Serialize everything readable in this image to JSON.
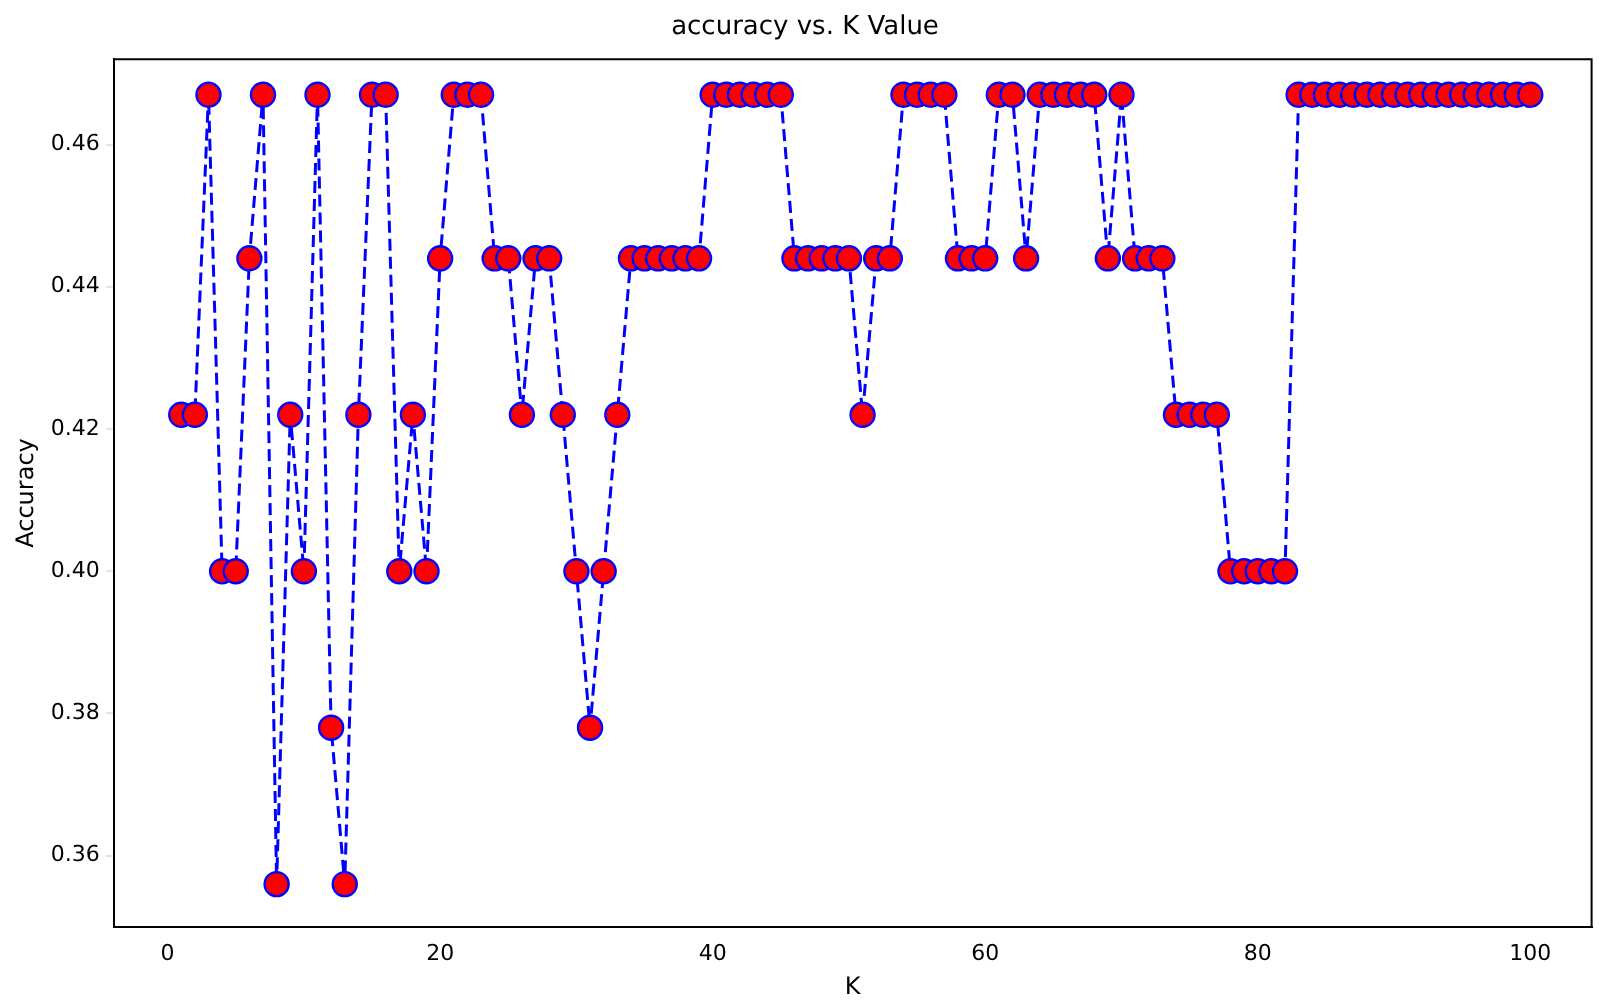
{
  "chart_data": {
    "type": "line",
    "title": "accuracy vs. K Value",
    "xlabel": "K",
    "ylabel": "Accuracy",
    "xlim": [
      -3.95,
      104.5
    ],
    "xticks": [
      0,
      20,
      40,
      60,
      80,
      100
    ],
    "ylim": [
      0.35,
      0.472
    ],
    "yticks": [
      {
        "value": 0.36,
        "label": "0.36"
      },
      {
        "value": 0.38,
        "label": "0.38"
      },
      {
        "value": 0.4,
        "label": "0.40"
      },
      {
        "value": 0.42,
        "label": "0.42"
      },
      {
        "value": 0.44,
        "label": "0.44"
      },
      {
        "value": 0.46,
        "label": "0.46"
      }
    ],
    "grid": false,
    "legend": false,
    "marker": "circle",
    "line_style": "dashed",
    "series": [
      {
        "color": "#0000ff",
        "x": [
          1,
          2,
          3,
          4,
          5,
          6,
          7,
          8,
          9,
          10,
          11,
          12,
          13,
          14,
          15,
          16,
          17,
          18,
          19,
          20,
          21,
          22,
          23,
          24,
          25,
          26,
          27,
          28,
          29,
          30,
          31,
          32,
          33,
          34,
          35,
          36,
          37,
          38,
          39,
          40,
          41,
          42,
          43,
          44,
          45,
          46,
          47,
          48,
          49,
          50,
          51,
          52,
          53,
          54,
          55,
          56,
          57,
          58,
          59,
          60,
          61,
          62,
          63,
          64,
          65,
          66,
          67,
          68,
          69,
          70,
          71,
          72,
          73,
          74,
          75,
          76,
          77,
          78,
          79,
          80,
          81,
          82,
          83,
          84,
          85,
          86,
          87,
          88,
          89,
          90,
          91,
          92,
          93,
          94,
          95,
          96,
          97,
          98,
          99,
          100
        ],
        "values": [
          0.422,
          0.422,
          0.467,
          0.4,
          0.4,
          0.444,
          0.467,
          0.356,
          0.422,
          0.4,
          0.467,
          0.378,
          0.356,
          0.422,
          0.467,
          0.467,
          0.4,
          0.422,
          0.4,
          0.444,
          0.467,
          0.467,
          0.467,
          0.444,
          0.444,
          0.422,
          0.444,
          0.444,
          0.422,
          0.4,
          0.378,
          0.4,
          0.422,
          0.444,
          0.444,
          0.444,
          0.444,
          0.444,
          0.444,
          0.467,
          0.467,
          0.467,
          0.467,
          0.467,
          0.467,
          0.444,
          0.444,
          0.444,
          0.444,
          0.444,
          0.422,
          0.444,
          0.444,
          0.467,
          0.467,
          0.467,
          0.467,
          0.444,
          0.444,
          0.444,
          0.467,
          0.467,
          0.444,
          0.467,
          0.467,
          0.467,
          0.467,
          0.467,
          0.444,
          0.467,
          0.444,
          0.444,
          0.444,
          0.422,
          0.422,
          0.422,
          0.422,
          0.4,
          0.4,
          0.4,
          0.4,
          0.4,
          0.467,
          0.467,
          0.467,
          0.467,
          0.467,
          0.467,
          0.467,
          0.467,
          0.467,
          0.467,
          0.467,
          0.467,
          0.467,
          0.467,
          0.467,
          0.467,
          0.467,
          0.467
        ],
        "colors": [
          "#ff0000",
          "#ff0000",
          "#ff0000",
          "#ff0000",
          "#ff0000",
          "#ff0000",
          "#ff0000",
          "#ff0000",
          "#ff0000",
          "#ff0000",
          "#ff0000",
          "#ff0000",
          "#ff0000",
          "#ff0000",
          "#ff0000",
          "#ff0000",
          "#ff0000",
          "#ff0000",
          "#ff0000",
          "#ff0000",
          "#ff0000",
          "#ff0000",
          "#ff0000",
          "#ff0000",
          "#ff0000",
          "#ff0000",
          "#ff0000",
          "#ff0000",
          "#ff0000",
          "#ff0000",
          "#ff0000",
          "#ff0000",
          "#ff0000",
          "#ff0000",
          "#ff0000",
          "#ff0000",
          "#ff0000",
          "#ff0000",
          "#ff0000",
          "#ff0000",
          "#ff0000",
          "#ff0000",
          "#ff0000",
          "#ff0000",
          "#ff0000",
          "#ff0000",
          "#ff0000",
          "#ff0000",
          "#ff0000",
          "#ff0000",
          "#ff0000",
          "#ff0000",
          "#ff0000",
          "#ff0000",
          "#ff0000",
          "#ff0000",
          "#ff0000",
          "#ff0000",
          "#ff0000",
          "#ff0000",
          "#ff0000",
          "#ff0000",
          "#ff0000",
          "#ff0000",
          "#ff0000",
          "#ff0000",
          "#ff0000",
          "#ff0000",
          "#ff0000",
          "#ff0000",
          "#ff0000",
          "#ff0000",
          "#ff0000",
          "#ff0000",
          "#ff0000",
          "#ff0000",
          "#ff0000",
          "#ff0000",
          "#ff0000",
          "#ff0000",
          "#ff0000",
          "#ff0000",
          "#ff0000",
          "#ff0000",
          "#ff0000",
          "#ff0000",
          "#ff0000",
          "#ff0000",
          "#ff0000",
          "#ff0000",
          "#ff0000",
          "#ff0000",
          "#ff0000",
          "#ff0000",
          "#ff0000",
          "#ff0000",
          "#ff0000",
          "#ff0000",
          "#ff0000",
          "#ff0000"
        ]
      }
    ]
  }
}
